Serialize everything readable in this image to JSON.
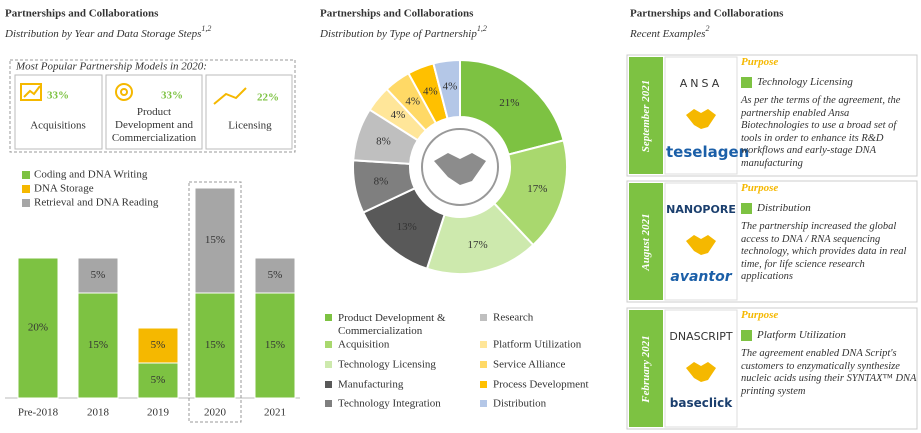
{
  "chart_data": [
    {
      "type": "stacked-bar",
      "title": "Partnerships and Collaborations",
      "subtitle": "Distribution by Year and Data Storage Steps",
      "subtitle_sup": "1,2",
      "categories": [
        "Pre-2018",
        "2018",
        "2019",
        "2020",
        "2021"
      ],
      "highlight_index": 3,
      "series": [
        {
          "name": "Coding and DNA Writing",
          "color": "#7dc242",
          "values": [
            20,
            15,
            5,
            15,
            15
          ],
          "value_labels": [
            "20%",
            "15%",
            "5%",
            "15%",
            "15%"
          ]
        },
        {
          "name": "DNA Storage",
          "color": "#f5b800",
          "values": [
            null,
            null,
            5,
            null,
            null
          ],
          "value_labels": [
            null,
            null,
            "5%",
            null,
            null
          ]
        },
        {
          "name": "Retrieval and DNA Reading",
          "color": "#a6a6a6",
          "values": [
            null,
            5,
            null,
            15,
            5
          ],
          "value_labels": [
            null,
            "5%",
            null,
            "15%",
            "5%"
          ]
        }
      ]
    },
    {
      "type": "donut",
      "title": "Partnerships and Collaborations",
      "subtitle": "Distribution by Type of Partnership",
      "subtitle_sup": "1,2",
      "categories": [
        "Product Development & Commercialization",
        "Acquisition",
        "Technology Licensing",
        "Manufacturing",
        "Technology Integration",
        "Research",
        "Platform Utilization",
        "Service Alliance",
        "Process Development",
        "Distribution"
      ],
      "values": [
        21,
        17,
        17,
        13,
        8,
        8,
        4,
        4,
        4,
        4
      ],
      "value_labels": [
        "21%",
        "17%",
        "17%",
        "13%",
        "8%",
        "8%",
        "4%",
        "4%",
        "4%",
        "4%"
      ],
      "colors": [
        "#7dc242",
        "#a9d86e",
        "#cde9ad",
        "#595959",
        "#7f7f7f",
        "#bfbfbf",
        "#ffe699",
        "#ffd966",
        "#ffc000",
        "#b4c7e7"
      ]
    }
  ],
  "summary": {
    "title": "Most Popular Partnership Models in 2020:",
    "items": [
      {
        "value": "33%",
        "label": "Acquisitions"
      },
      {
        "value": "33%",
        "label": "Product Development and Commercialization"
      },
      {
        "value": "22%",
        "label": "Licensing"
      }
    ]
  },
  "examples": {
    "title": "Partnerships and Collaborations",
    "subtitle": "Recent Examples",
    "subtitle_sup": "2",
    "items": [
      {
        "date": "September 2021",
        "purpose_heading": "Purpose",
        "purpose": "Technology Licensing",
        "partners": [
          "ANSA",
          "teselagen"
        ],
        "description": "As per the terms of the agreement, the partnership enabled Ansa Biotechnologies to use a broad set of tools in order to enhance its R&D workflows and early-stage DNA manufacturing"
      },
      {
        "date": "August 2021",
        "purpose_heading": "Purpose",
        "purpose": "Distribution",
        "partners": [
          "NANOPORE",
          "avantor"
        ],
        "description": "The partnership increased the global access to DNA / RNA sequencing technology, which provides data in real time, for life science research applications"
      },
      {
        "date": "February 2021",
        "purpose_heading": "Purpose",
        "purpose": "Platform Utilization",
        "partners": [
          "DNASCRIPT",
          "baseclick"
        ],
        "description": "The agreement enabled DNA Script's customers to enzymatically synthesize nucleic acids using their SYNTAX™ DNA printing system"
      }
    ]
  }
}
